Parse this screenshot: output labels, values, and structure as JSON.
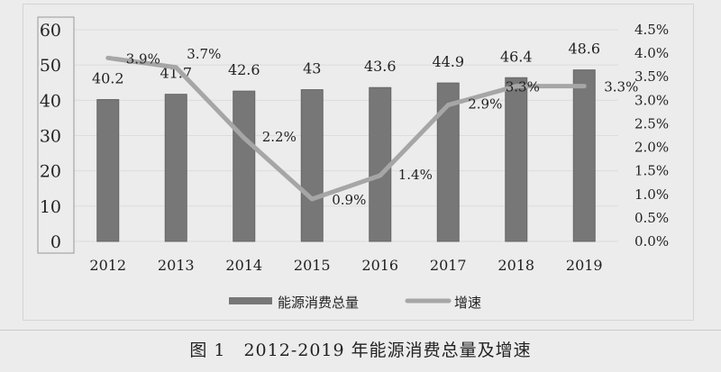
{
  "chart_data": {
    "type": "bar+line",
    "categories": [
      "2012",
      "2013",
      "2014",
      "2015",
      "2016",
      "2017",
      "2018",
      "2019"
    ],
    "series": [
      {
        "name": "能源消费总量",
        "type": "bar",
        "axis": "left",
        "values": [
          40.2,
          41.7,
          42.6,
          43,
          43.6,
          44.9,
          46.4,
          48.6
        ],
        "labels": [
          "40.2",
          "41.7",
          "42.6",
          "43",
          "43.6",
          "44.9",
          "46.4",
          "48.6"
        ],
        "color": "#777777"
      },
      {
        "name": "增速",
        "type": "line",
        "axis": "right",
        "values": [
          3.9,
          3.7,
          2.2,
          0.9,
          1.4,
          2.9,
          3.3,
          3.3
        ],
        "labels": [
          "3.9%",
          "3.7%",
          "2.2%",
          "0.9%",
          "1.4%",
          "2.9%",
          "3.3%",
          "3.3%"
        ],
        "color": "#a6a6a6"
      }
    ],
    "left_axis": {
      "ylim": [
        0,
        60
      ],
      "ticks": [
        "0",
        "10",
        "20",
        "30",
        "40",
        "50",
        "60"
      ]
    },
    "right_axis": {
      "ylim": [
        0,
        4.5
      ],
      "ticks": [
        "0.0%",
        "0.5%",
        "1.0%",
        "1.5%",
        "2.0%",
        "2.5%",
        "3.0%",
        "3.5%",
        "4.0%",
        "4.5%"
      ]
    },
    "grid": true,
    "legend": "bottom"
  },
  "caption": "图 1　2012-2019 年能源消费总量及增速"
}
